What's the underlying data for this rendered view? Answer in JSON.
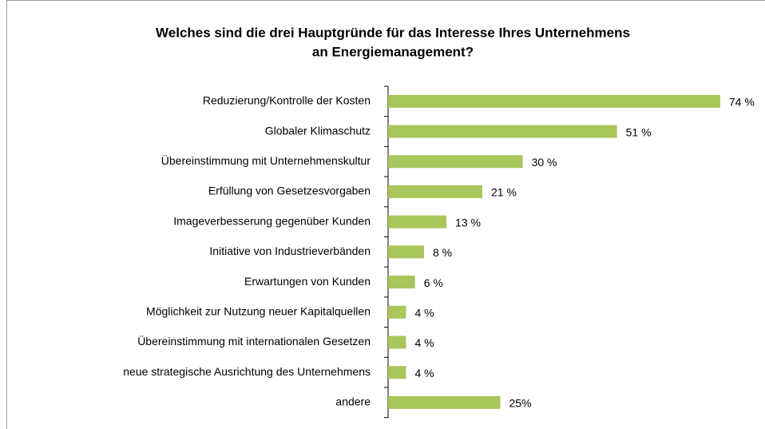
{
  "chart_data": {
    "type": "barh",
    "title": [
      "Welches sind die drei Hauptgründe für das Interesse Ihres Unternehmens",
      "an Energiemanagement?"
    ],
    "categories": [
      "Reduzierung/Kontrolle der Kosten",
      "Globaler Klimaschutz",
      "Übereinstimmung mit Unternehmenskultur",
      "Erfüllung von Gesetzesvorgaben",
      "Imageverbesserung gegenüber Kunden",
      "Initiative von Industrieverbänden",
      "Erwartungen von Kunden",
      "Möglichkeit zur Nutzung neuer Kapitalquellen",
      "Übereinstimmung mit internationalen Gesetzen",
      "neue strategische Ausrichtung des Unternehmens",
      "andere"
    ],
    "values": [
      74,
      51,
      30,
      21,
      13,
      8,
      6,
      4,
      4,
      4,
      25
    ],
    "value_labels": [
      "74 %",
      "51 %",
      "30 %",
      "21 %",
      "13 %",
      "8 %",
      "6 %",
      "4 %",
      "4 %",
      "4 %",
      "25%"
    ],
    "color": "#a8c65a"
  }
}
